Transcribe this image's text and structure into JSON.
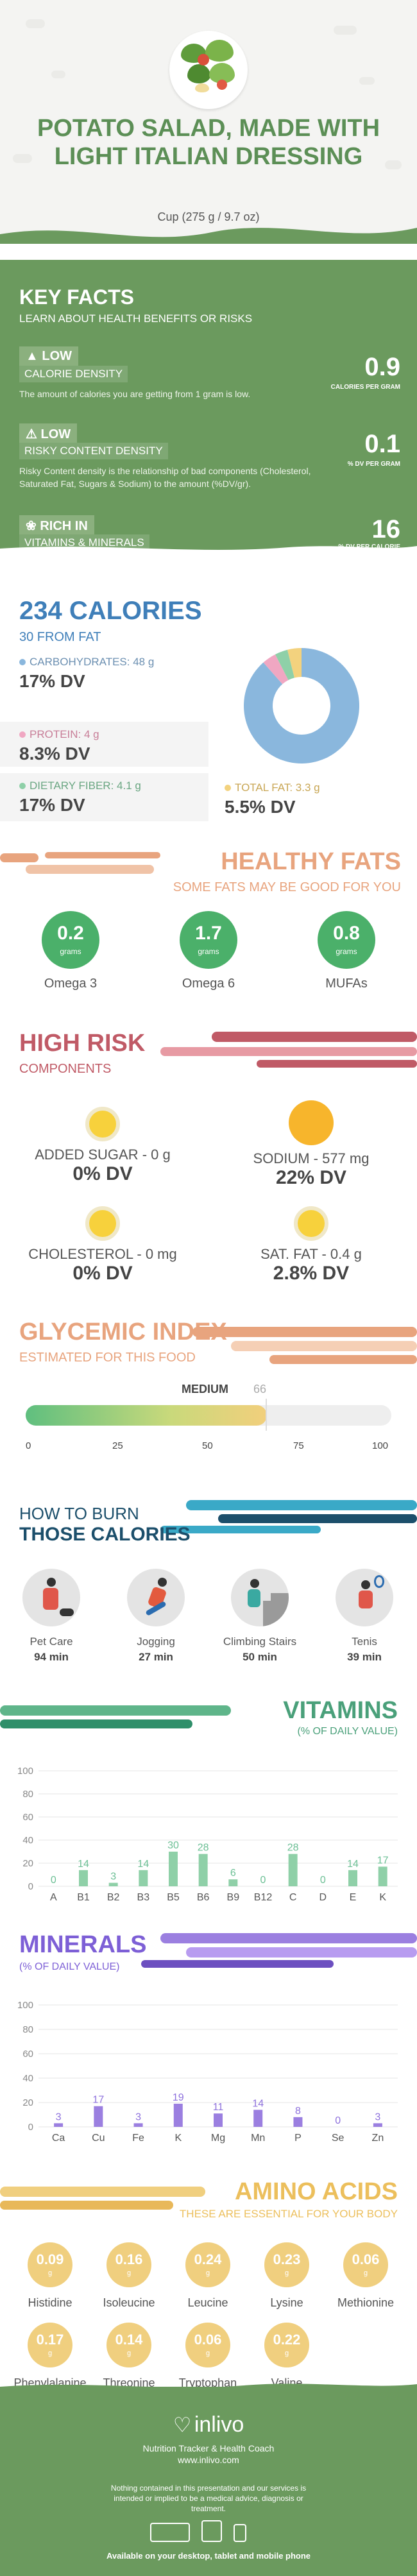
{
  "header": {
    "title": "POTATO SALAD, MADE WITH LIGHT ITALIAN DRESSING",
    "serving": "Cup (275 g / 9.7 oz)"
  },
  "key_facts": {
    "title": "KEY FACTS",
    "subtitle": "LEARN ABOUT HEALTH BENEFITS OR RISKS",
    "rows": [
      {
        "level": "LOW",
        "label": "CALORIE DENSITY",
        "desc": "The amount of calories you are getting from 1 gram is low.",
        "value": "0.9",
        "unit": "CALORIES PER GRAM"
      },
      {
        "level": "LOW",
        "label": "RISKY CONTENT DENSITY",
        "desc": "Risky Content density is the relationship of bad components (Cholesterol, Saturated Fat, Sugars & Sodium) to the amount (%DV/gr).",
        "value": "0.1",
        "unit": "% DV PER GRAM"
      },
      {
        "level": "RICH IN",
        "label": "VITAMINS & MINERALS",
        "desc": "",
        "value": "16",
        "unit": "% DV PER CALORIE"
      }
    ]
  },
  "calories": {
    "title": "234 CALORIES",
    "from_fat": "30 FROM FAT",
    "carbs": {
      "label": "CARBOHYDRATES: 48 g",
      "dv": "17% DV"
    },
    "protein": {
      "label": "PROTEIN: 4 g",
      "dv": "8.3% DV"
    },
    "fiber": {
      "label": "DIETARY FIBER: 4.1 g",
      "dv": "17% DV"
    },
    "fat": {
      "label": "TOTAL FAT: 3.3 g",
      "dv": "5.5% DV"
    },
    "colors": {
      "carbs": "#8ab7dd",
      "protein": "#f0a7c2",
      "fiber": "#8fd0a8",
      "fat": "#f3d27e"
    }
  },
  "healthy_fats": {
    "title": "HEALTHY FATS",
    "subtitle": "SOME FATS MAY BE GOOD FOR YOU",
    "items": [
      {
        "value": "0.2",
        "unit": "grams",
        "name": "Omega 3"
      },
      {
        "value": "1.7",
        "unit": "grams",
        "name": "Omega 6"
      },
      {
        "value": "0.8",
        "unit": "grams",
        "name": "MUFAs"
      }
    ]
  },
  "high_risk": {
    "title": "HIGH RISK",
    "subtitle": "COMPONENTS",
    "items": [
      {
        "name": "ADDED SUGAR - 0 g",
        "dv": "0% DV"
      },
      {
        "name": "SODIUM - 577 mg",
        "dv": "22% DV"
      },
      {
        "name": "CHOLESTEROL - 0 mg",
        "dv": "0% DV"
      },
      {
        "name": "SAT. FAT - 0.4 g",
        "dv": "2.8% DV"
      }
    ]
  },
  "glycemic": {
    "title": "GLYCEMIC INDEX",
    "subtitle": "ESTIMATED FOR THIS FOOD",
    "level": "MEDIUM",
    "value": "66",
    "ticks": [
      "0",
      "25",
      "50",
      "75",
      "100"
    ]
  },
  "burn": {
    "title_top": "HOW TO BURN",
    "title_bottom": "THOSE CALORIES",
    "items": [
      {
        "name": "Pet Care",
        "minutes": "94 min"
      },
      {
        "name": "Jogging",
        "minutes": "27 min"
      },
      {
        "name": "Climbing Stairs",
        "minutes": "50 min"
      },
      {
        "name": "Tenis",
        "minutes": "39 min"
      }
    ]
  },
  "vitamins": {
    "title": "VITAMINS",
    "subtitle": "(% OF DAILY VALUE)",
    "chart_data": {
      "type": "bar",
      "categories": [
        "A",
        "B1",
        "B2",
        "B3",
        "B5",
        "B6",
        "B9",
        "B12",
        "C",
        "D",
        "E",
        "K"
      ],
      "values": [
        0,
        14,
        3,
        14,
        30,
        28,
        6,
        0,
        28,
        0,
        14,
        17
      ],
      "ylim": [
        0,
        100
      ],
      "yticks": [
        "0",
        "20",
        "40",
        "60",
        "80",
        "100"
      ],
      "color": "#8fd0a8"
    }
  },
  "minerals": {
    "title": "MINERALS",
    "subtitle": "(% OF DAILY VALUE)",
    "chart_data": {
      "type": "bar",
      "categories": [
        "Ca",
        "Cu",
        "Fe",
        "K",
        "Mg",
        "Mn",
        "P",
        "Se",
        "Zn"
      ],
      "values": [
        3,
        17,
        3,
        19,
        11,
        14,
        8,
        0,
        3
      ],
      "ylim": [
        0,
        100
      ],
      "yticks": [
        "0",
        "20",
        "40",
        "60",
        "80",
        "100"
      ],
      "color": "#9b7fe0"
    }
  },
  "amino": {
    "title": "AMINO ACIDS",
    "subtitle": "THESE ARE ESSENTIAL FOR YOUR BODY",
    "items": [
      {
        "value": "0.09",
        "unit": "g",
        "name": "Histidine"
      },
      {
        "value": "0.16",
        "unit": "g",
        "name": "Isoleucine"
      },
      {
        "value": "0.24",
        "unit": "g",
        "name": "Leucine"
      },
      {
        "value": "0.23",
        "unit": "g",
        "name": "Lysine"
      },
      {
        "value": "0.06",
        "unit": "g",
        "name": "Methionine"
      },
      {
        "value": "0.17",
        "unit": "g",
        "name": "Phenylalanine"
      },
      {
        "value": "0.14",
        "unit": "g",
        "name": "Threonine"
      },
      {
        "value": "0.06",
        "unit": "g",
        "name": "Tryptophan"
      },
      {
        "value": "0.22",
        "unit": "g",
        "name": "Valine"
      }
    ]
  },
  "footer": {
    "brand": "inlivo",
    "tagline": "Nutrition Tracker & Health Coach",
    "url": "www.inlivo.com",
    "disclaimer": "Nothing contained in this presentation and our services is intended or implied to be a medical advice, diagnosis or treatment.",
    "available": "Available on your desktop, tablet and mobile phone"
  }
}
